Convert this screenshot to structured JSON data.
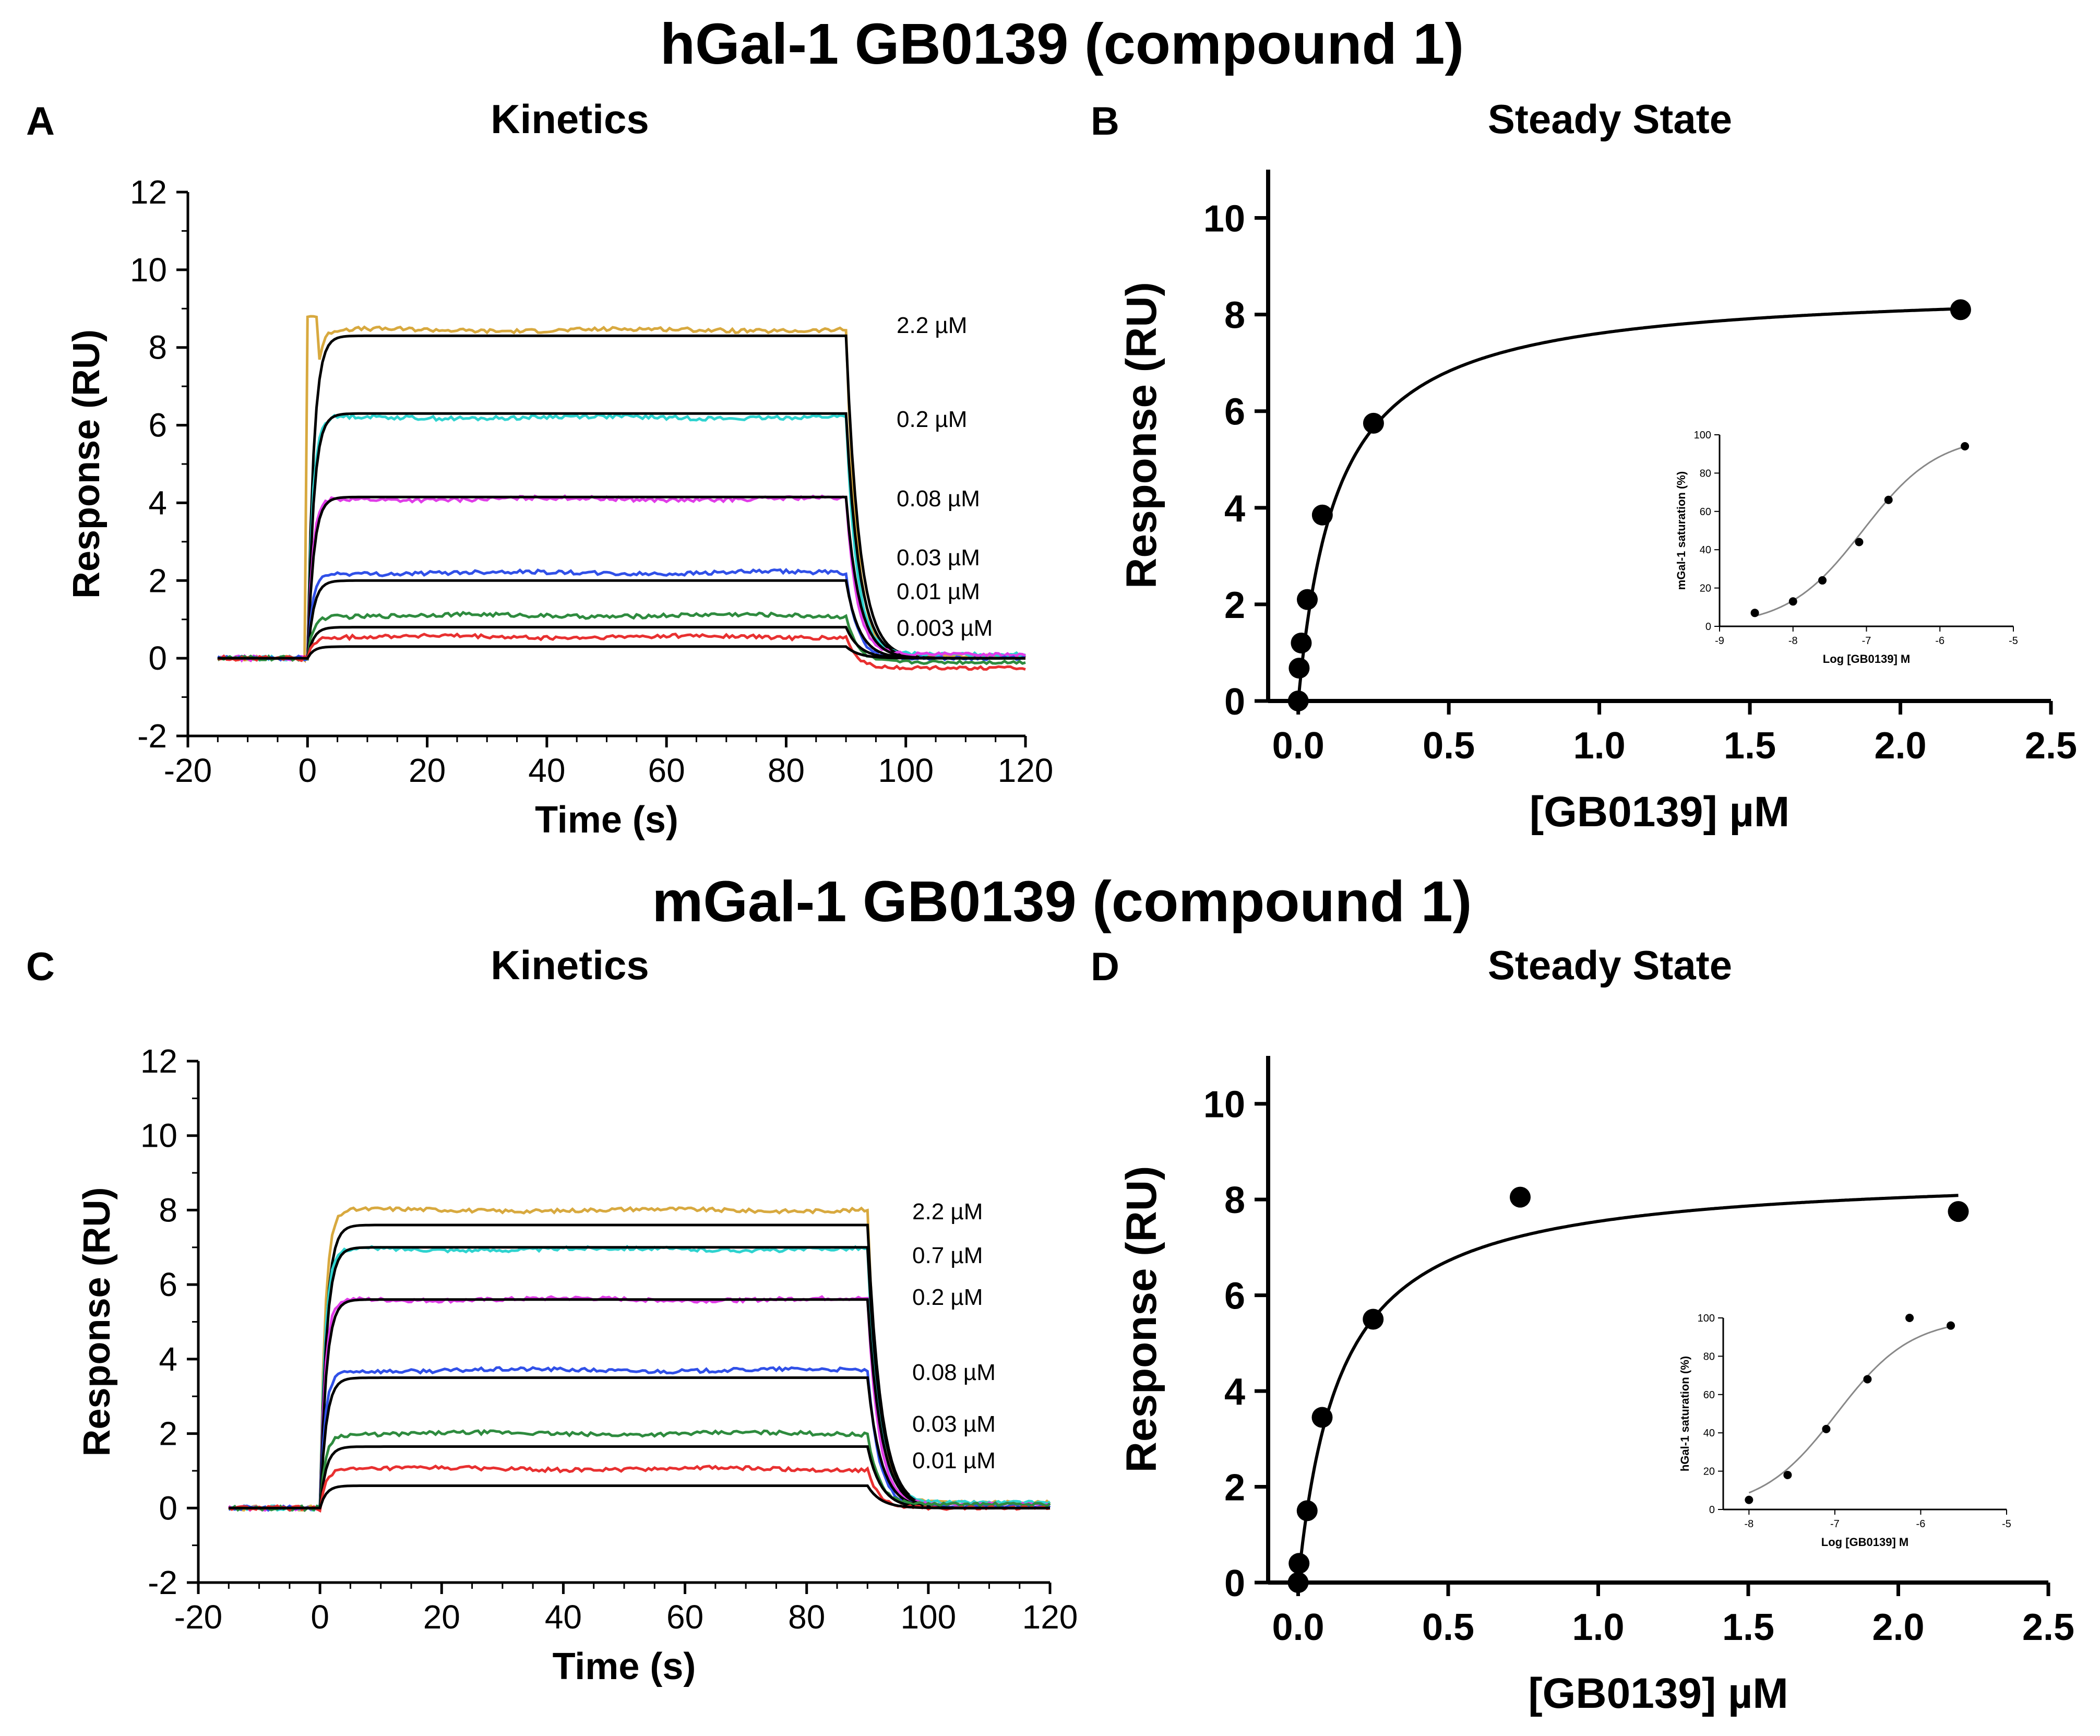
{
  "figure": {
    "top_title": "hGal-1 GB0139 (compound 1)",
    "bottom_title": "mGal-1 GB0139 (compound 1)"
  },
  "chart_data": [
    {
      "panel": "A",
      "type": "line",
      "title": "Kinetics",
      "xlabel": "Time (s)",
      "ylabel": "Response (RU)",
      "xlim": [
        -20,
        120
      ],
      "ylim": [
        -2,
        12
      ],
      "xticks": [
        -20,
        0,
        20,
        40,
        60,
        80,
        100,
        120
      ],
      "yticks": [
        -2,
        0,
        2,
        4,
        6,
        8,
        10,
        12
      ],
      "injection": {
        "start": 0,
        "end": 90
      },
      "series": [
        {
          "label": "2.2 µM",
          "color": "#d8a93f",
          "plateau": 8.45,
          "fit": 8.3,
          "pre_spike": 8.8,
          "post": 0.05
        },
        {
          "label": "0.2 µM",
          "color": "#2ed3cf",
          "plateau": 6.2,
          "fit": 6.3,
          "post": 0.1
        },
        {
          "label": "0.08 µM",
          "color": "#e03ce8",
          "plateau": 4.1,
          "fit": 4.15,
          "post": 0.1
        },
        {
          "label": "0.03 µM",
          "color": "#3050e8",
          "plateau": 2.2,
          "fit": 2.0,
          "post": 0.0
        },
        {
          "label": "0.01 µM",
          "color": "#2e8b3e",
          "plateau": 1.1,
          "fit": 0.8,
          "post": -0.1
        },
        {
          "label": "0.003 µM",
          "color": "#e83030",
          "plateau": 0.55,
          "fit": 0.3,
          "post": -0.25
        }
      ]
    },
    {
      "panel": "B",
      "type": "scatter",
      "title": "Steady State",
      "xlabel": "[GB0139] µM",
      "ylabel": "Response (RU)",
      "xlim": [
        -0.1,
        2.5
      ],
      "ylim": [
        0,
        11
      ],
      "xticks": [
        "0.0",
        "0.5",
        "1.0",
        "1.5",
        "2.0",
        "2.5"
      ],
      "yticks": [
        0,
        2,
        4,
        6,
        8,
        10
      ],
      "points": [
        [
          0,
          0
        ],
        [
          0.003,
          0.68
        ],
        [
          0.01,
          1.2
        ],
        [
          0.03,
          2.1
        ],
        [
          0.08,
          3.85
        ],
        [
          0.25,
          5.75
        ],
        [
          2.2,
          8.1
        ]
      ],
      "fit": {
        "rmax": 8.6,
        "kd": 0.13
      },
      "inset": {
        "xlabel": "Log [GB0139] M",
        "ylabel": "mGal-1 saturation (%)",
        "xlim": [
          -9,
          -5
        ],
        "ylim": [
          0,
          100
        ],
        "xticks": [
          -9,
          -8,
          -7,
          -6,
          -5
        ],
        "yticks": [
          0,
          20,
          40,
          60,
          80,
          100
        ],
        "points": [
          [
            -8.52,
            7
          ],
          [
            -8.0,
            13
          ],
          [
            -7.6,
            24
          ],
          [
            -7.1,
            44
          ],
          [
            -6.7,
            66
          ],
          [
            -5.66,
            94
          ]
        ],
        "fit": {
          "logec50": -7.05,
          "hill": 0.85
        }
      }
    },
    {
      "panel": "C",
      "type": "line",
      "title": "Kinetics",
      "xlabel": "Time (s)",
      "ylabel": "Response (RU)",
      "xlim": [
        -20,
        120
      ],
      "ylim": [
        -2,
        12
      ],
      "xticks": [
        -20,
        0,
        20,
        40,
        60,
        80,
        100,
        120
      ],
      "yticks": [
        -2,
        0,
        2,
        4,
        6,
        8,
        10,
        12
      ],
      "injection": {
        "start": 0,
        "end": 90
      },
      "series": [
        {
          "label": "2.2 µM",
          "color": "#d8a93f",
          "plateau": 8.0,
          "fit": 7.6,
          "post": 0.15
        },
        {
          "label": "0.7 µM",
          "color": "#2ed3cf",
          "plateau": 6.95,
          "fit": 7.0,
          "post": 0.15
        },
        {
          "label": "0.2 µM",
          "color": "#e03ce8",
          "plateau": 5.6,
          "fit": 5.6,
          "post": 0.1
        },
        {
          "label": "0.08 µM",
          "color": "#3050e8",
          "plateau": 3.7,
          "fit": 3.5,
          "post": 0.05
        },
        {
          "label": "0.03 µM",
          "color": "#2e8b3e",
          "plateau": 2.0,
          "fit": 1.65,
          "post": 0.1
        },
        {
          "label": "0.01 µM",
          "color": "#e83030",
          "plateau": 1.05,
          "fit": 0.6,
          "post": 0.0
        }
      ]
    },
    {
      "panel": "D",
      "type": "scatter",
      "title": "Steady State",
      "xlabel": "[GB0139] µM",
      "ylabel": "Response (RU)",
      "xlim": [
        -0.1,
        2.5
      ],
      "ylim": [
        0,
        11
      ],
      "xticks": [
        "0.0",
        "0.5",
        "1.0",
        "1.5",
        "2.0",
        "2.5"
      ],
      "yticks": [
        0,
        2,
        4,
        6,
        8,
        10
      ],
      "points": [
        [
          0,
          0
        ],
        [
          0.003,
          0.4
        ],
        [
          0.03,
          1.5
        ],
        [
          0.08,
          3.45
        ],
        [
          0.25,
          5.5
        ],
        [
          0.74,
          8.05
        ],
        [
          2.2,
          7.75
        ]
      ],
      "fit": {
        "rmax": 8.6,
        "kd": 0.14
      },
      "inset": {
        "xlabel": "Log [GB0139] M",
        "ylabel": "hGal-1 saturation (%)",
        "xlim": [
          -8.3,
          -5
        ],
        "ylim": [
          0,
          100
        ],
        "xticks": [
          -8,
          -7,
          -6,
          -5
        ],
        "yticks": [
          0,
          20,
          40,
          60,
          80,
          100
        ],
        "points": [
          [
            -8.0,
            5
          ],
          [
            -7.55,
            18
          ],
          [
            -7.1,
            42
          ],
          [
            -6.62,
            68
          ],
          [
            -6.13,
            100
          ],
          [
            -5.65,
            96
          ]
        ],
        "fit": {
          "logec50": -6.98,
          "hill": 1.0
        }
      }
    }
  ]
}
